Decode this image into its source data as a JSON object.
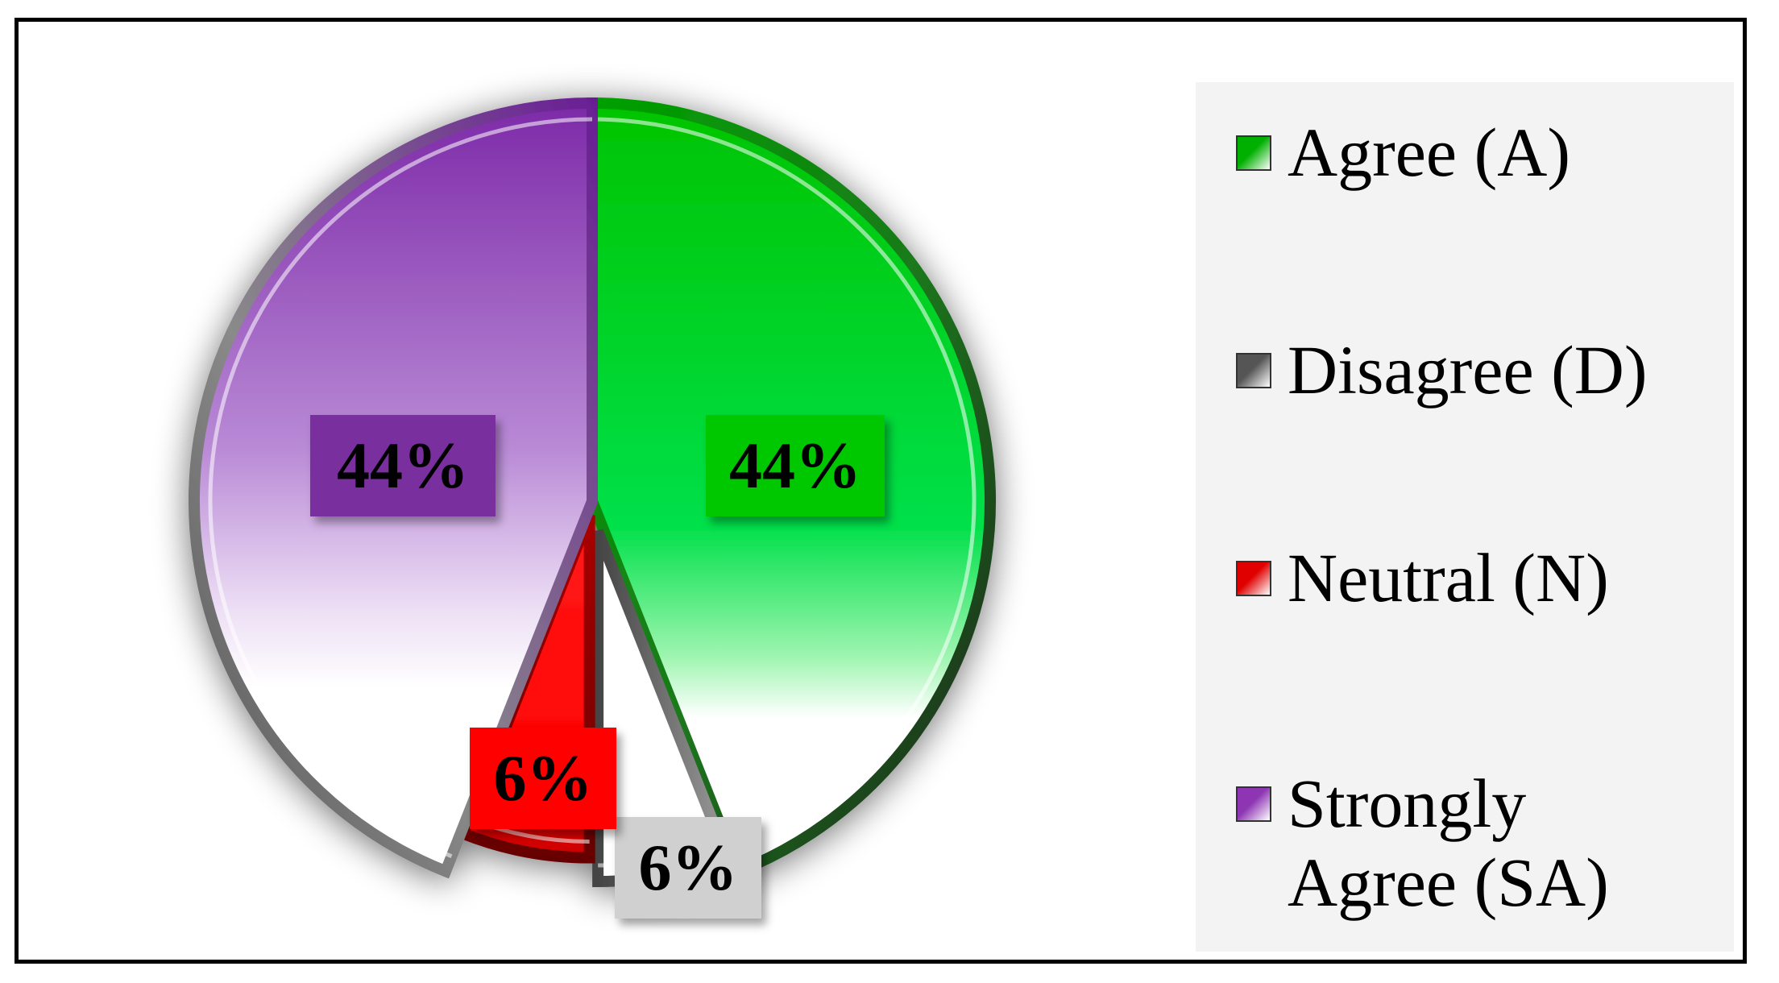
{
  "chart_data": {
    "type": "pie",
    "title": "",
    "slices": [
      {
        "name": "Agree (A)",
        "value": 44,
        "label": "44%",
        "color": "#00cc00",
        "label_bg": "#00c800",
        "exploded": false
      },
      {
        "name": "Disagree (D)",
        "value": 6,
        "label": "6%",
        "color": "#9a9a9a",
        "label_bg": "#d0d0d0",
        "exploded": true
      },
      {
        "name": "Neutral (N)",
        "value": 6,
        "label": "6%",
        "color": "#ff0000",
        "label_bg": "#ff0000",
        "exploded": true
      },
      {
        "name": "Strongly Agree (SA)",
        "value": 44,
        "label": "44%",
        "color": "#8e35b4",
        "label_bg": "#7a2f9e",
        "exploded": false
      }
    ],
    "start_angle": "12 o'clock",
    "direction": "clockwise",
    "legend_position": "right"
  },
  "legend": {
    "items": [
      {
        "text": "Agree (A)",
        "swatch": "#00b000"
      },
      {
        "text": "Disagree (D)",
        "swatch": "#555555"
      },
      {
        "text": "Neutral (N)",
        "swatch": "#e00000"
      },
      {
        "text": "Strongly\nAgree (SA)",
        "swatch": "#8e35b4"
      }
    ]
  }
}
